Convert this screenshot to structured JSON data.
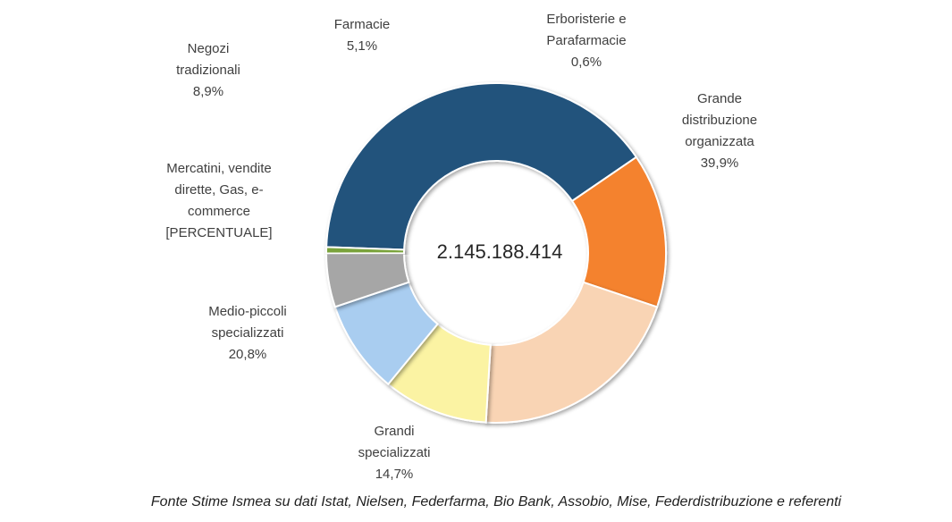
{
  "chart_data": {
    "type": "pie",
    "subtype": "donut",
    "center_text": "2.145.188.414",
    "series": [
      {
        "label_lines": [
          "Grande",
          "distribuzione",
          "organizzata"
        ],
        "value_text": "39,9%",
        "value": 39.9,
        "color": "#23527c"
      },
      {
        "label_lines": [
          "Grandi",
          "specializzati"
        ],
        "value_text": "14,7%",
        "value": 14.7,
        "color": "#f4822e"
      },
      {
        "label_lines": [
          "Medio-piccoli",
          "specializzati"
        ],
        "value_text": "20,8%",
        "value": 20.8,
        "color": "#f9d4b4"
      },
      {
        "label_lines": [
          "Mercatini, vendite",
          "dirette, Gas, e-",
          "commerce"
        ],
        "value_text": "[PERCENTUALE]",
        "value": 10.0,
        "color": "#fbf3a3"
      },
      {
        "label_lines": [
          "Negozi",
          "tradizionali"
        ],
        "value_text": "8,9%",
        "value": 8.9,
        "color": "#a9cdf0"
      },
      {
        "label_lines": [
          "Farmacie"
        ],
        "value_text": "5,1%",
        "value": 5.1,
        "color": "#a6a6a6"
      },
      {
        "label_lines": [
          "Erboristerie e",
          "Parafarmacie"
        ],
        "value_text": "0,6%",
        "value": 0.6,
        "color": "#7aa33a"
      }
    ]
  },
  "source_note": "Fonte Stime Ismea su dati Istat, Nielsen, Federfarma, Bio Bank, Assobio, Mise, Federdistribuzione e referenti"
}
